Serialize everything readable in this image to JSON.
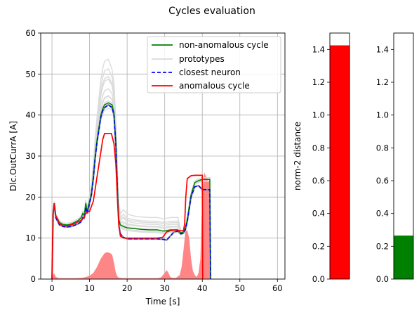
{
  "chart_data": [
    {
      "type": "line",
      "title": "Cycles evaluation",
      "xlabel": "Time [s]",
      "ylabel": "Dlc.OutCurrA [A]",
      "xlim": [
        -3,
        62
      ],
      "ylim": [
        0,
        60
      ],
      "xticks": [
        0,
        10,
        20,
        30,
        40,
        50,
        60
      ],
      "yticks": [
        0,
        10,
        20,
        30,
        40,
        50,
        60
      ],
      "grid": true,
      "legend_position": "top-right",
      "colors": {
        "non_anomalous": "#008000",
        "prototypes": "#d9d9d9",
        "closest": "#0000ff",
        "anomalous": "#ff0000",
        "error_fill": "#ff8080"
      },
      "series": [
        {
          "name": "non-anomalous cycle",
          "style": "solid",
          "color": "#008000",
          "x": [
            0,
            0.3,
            0.6,
            1,
            2,
            3,
            4,
            5,
            6,
            7,
            7.8,
            8.2,
            8.6,
            9,
            9.4,
            10,
            10.5,
            11,
            11.5,
            12,
            12.5,
            13,
            13.5,
            14,
            15,
            16,
            16.5,
            17,
            17.5,
            17.8,
            18.2,
            19,
            20,
            22,
            24,
            26,
            28,
            29.5,
            30.5,
            31.5,
            32.5,
            33.5,
            34.3,
            35,
            35.5,
            36,
            37,
            38,
            39,
            40,
            41,
            42,
            42.2
          ],
          "y": [
            0,
            16,
            18.5,
            15.5,
            13.8,
            13.3,
            13.2,
            13.4,
            13.8,
            14.3,
            15,
            16,
            15.5,
            18.5,
            16.5,
            19,
            21,
            25,
            30,
            34,
            37,
            40,
            41.5,
            42.5,
            43,
            42.5,
            40.5,
            33,
            20,
            14.5,
            13.2,
            12.8,
            12.5,
            12.3,
            12.1,
            12,
            12,
            11.7,
            11.8,
            12,
            12,
            12,
            11.3,
            11.5,
            12.5,
            14.5,
            20.5,
            23.5,
            24,
            24.3,
            24.3,
            24.3,
            0
          ]
        },
        {
          "name": "prototypes",
          "style": "solid",
          "color": "#d9d9d9",
          "offsets": [
            -1,
            0.5,
            1.2,
            2.2,
            3.5,
            5.5,
            7,
            8.5,
            10.5,
            0
          ]
        },
        {
          "name": "closest neuron",
          "style": "dashed",
          "color": "#0000ff",
          "x": [
            0,
            0.3,
            0.6,
            1,
            2,
            3,
            4,
            5,
            6,
            7,
            7.8,
            8.2,
            8.6,
            9,
            9.4,
            10,
            10.5,
            11,
            11.5,
            12,
            12.5,
            13,
            13.5,
            14,
            15,
            16,
            16.5,
            17,
            17.5,
            17.8,
            18.2,
            19,
            20,
            22,
            24,
            26,
            28,
            29.5,
            30.5,
            31.5,
            32.5,
            33.5,
            34.3,
            35,
            35.5,
            36,
            37,
            38,
            39,
            40,
            41,
            42,
            42.2
          ],
          "y": [
            0,
            16,
            18.5,
            15,
            13.2,
            12.8,
            12.7,
            12.8,
            13.1,
            13.5,
            14,
            15,
            14.8,
            17.5,
            16,
            18.5,
            20.5,
            24.5,
            29.5,
            33.5,
            36.5,
            39.5,
            41,
            41.8,
            42.5,
            41.8,
            40,
            32.5,
            19,
            13,
            11,
            10.2,
            9.8,
            9.8,
            9.8,
            9.8,
            9.8,
            9.7,
            9.5,
            10.5,
            11.5,
            11.7,
            11,
            11.2,
            12,
            14,
            20,
            22.5,
            22.8,
            21.8,
            21.8,
            21.8,
            0
          ]
        },
        {
          "name": "anomalous cycle",
          "style": "solid",
          "color": "#ff0000",
          "x": [
            0,
            0.3,
            0.6,
            1,
            2,
            3,
            4,
            5,
            6,
            7,
            7.5,
            8,
            8.5,
            9,
            9.5,
            10,
            11,
            12,
            13,
            13.5,
            14,
            15,
            15.8,
            16.5,
            17,
            17.4,
            17.8,
            18.2,
            19,
            20,
            22,
            25,
            28,
            29.5,
            30.5,
            31.5,
            33,
            34,
            35,
            35.3,
            35.6,
            36,
            37,
            38,
            39,
            40,
            40.1
          ],
          "y": [
            0,
            16,
            18.5,
            15.5,
            13.5,
            13,
            13,
            13.2,
            13.5,
            14,
            14.2,
            14.5,
            15,
            16,
            16.3,
            16.5,
            19,
            25,
            31,
            34,
            35.5,
            35.5,
            35.5,
            33,
            28,
            20,
            13,
            10.5,
            10,
            10,
            10,
            10,
            10,
            10.2,
            11.5,
            11.8,
            12,
            11.8,
            11.8,
            13.5,
            20,
            24.5,
            25.2,
            25.3,
            25.3,
            25.3,
            0
          ]
        },
        {
          "name": "",
          "type": "area",
          "color": "#ff8080",
          "x": [
            0,
            0.5,
            1,
            1.5,
            2,
            3,
            4,
            6,
            8,
            9,
            10,
            11,
            12,
            13,
            14,
            14.5,
            15,
            15.5,
            16,
            16.5,
            17,
            17.5,
            18,
            19,
            20,
            22,
            25,
            28,
            29,
            30,
            30.5,
            31,
            31.5,
            32,
            33,
            34,
            34.5,
            35,
            35.5,
            36,
            36.5,
            37,
            37.5,
            38,
            38.5,
            39,
            39.5,
            40,
            40.5,
            41,
            41.5,
            42,
            42.2
          ],
          "y": [
            0,
            1.5,
            0.6,
            0.3,
            0.2,
            0.2,
            0.2,
            0.2,
            0.3,
            0.5,
            0.8,
            1.5,
            3,
            5,
            6.3,
            6.5,
            6.5,
            6.3,
            6,
            4,
            1.5,
            0.5,
            0.3,
            0.2,
            0.2,
            0.2,
            0.2,
            0.2,
            0.4,
            1.5,
            2.2,
            1.5,
            0.5,
            0.3,
            0.3,
            1,
            3,
            7,
            11.5,
            12,
            10,
            5,
            2,
            1,
            0.5,
            1.5,
            5,
            20,
            26,
            25,
            24,
            24,
            0
          ]
        }
      ]
    },
    {
      "type": "bar",
      "categories": [
        ""
      ],
      "values": [
        1.425
      ],
      "color": "#ff0000",
      "ylabel": "norm-2 distance",
      "ylim": [
        0,
        1.5
      ],
      "yticks": [
        "0.0",
        "0.2",
        "0.4",
        "0.6",
        "0.8",
        "1.0",
        "1.2",
        "1.4"
      ]
    },
    {
      "type": "bar",
      "categories": [
        ""
      ],
      "values": [
        0.265
      ],
      "color": "#008000",
      "ylabel": "",
      "ylim": [
        0,
        1.5
      ],
      "yticks": [
        "0.0",
        "0.2",
        "0.4",
        "0.6",
        "0.8",
        "1.0",
        "1.2",
        "1.4"
      ]
    }
  ]
}
